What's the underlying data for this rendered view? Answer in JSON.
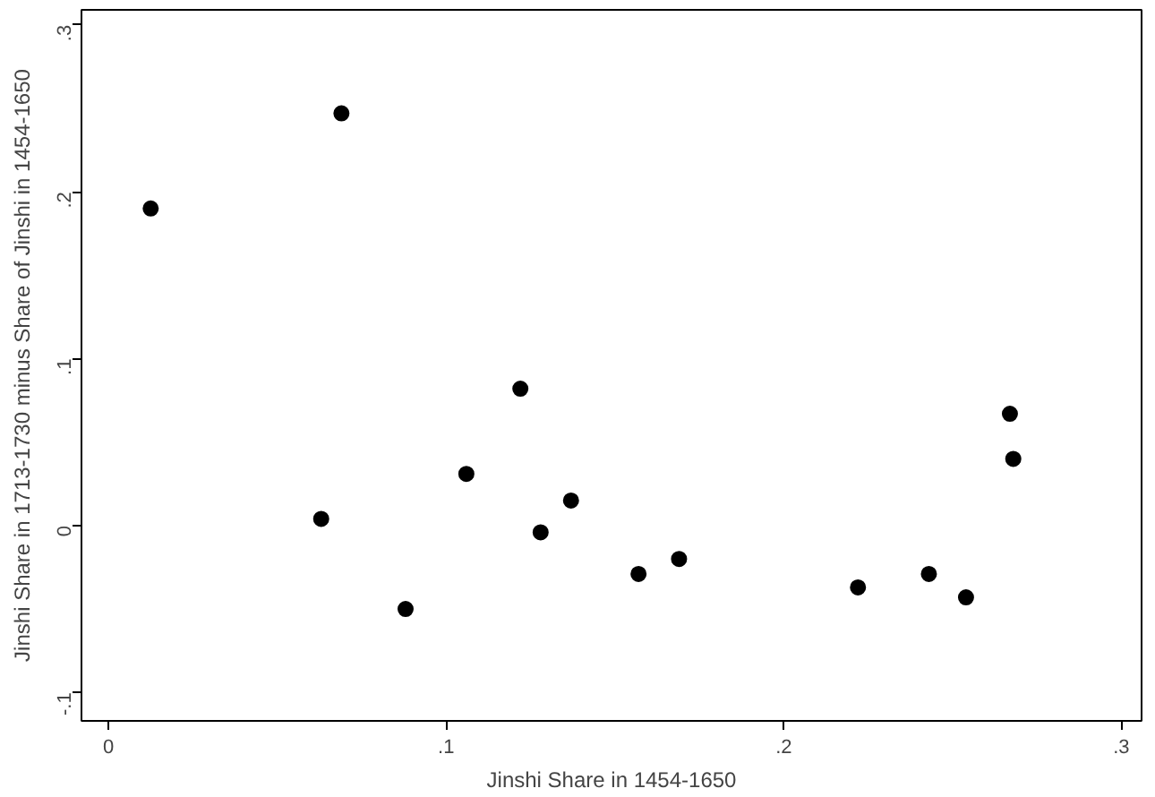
{
  "chart_data": {
    "type": "scatter",
    "xlabel": "Jinshi Share in 1454-1650",
    "ylabel": "Jinshi Share in 1713-1730 minus Share of Jinshi in 1454-1650",
    "x": [
      0.0125,
      0.069,
      0.063,
      0.088,
      0.106,
      0.122,
      0.128,
      0.137,
      0.157,
      0.169,
      0.222,
      0.243,
      0.254,
      0.267,
      0.268
    ],
    "series": [
      {
        "color": "#000000",
        "values": [
          0.19,
          0.247,
          0.004,
          -0.05,
          0.031,
          0.082,
          -0.004,
          0.015,
          -0.029,
          -0.02,
          -0.037,
          -0.029,
          -0.043,
          0.067,
          0.04
        ]
      }
    ],
    "xlim": [
      -0.008,
      0.306
    ],
    "ylim": [
      -0.117,
      0.309
    ],
    "xticks": [
      0,
      {
        "value": 0.1,
        "label": ".1"
      },
      {
        "value": 0.2,
        "label": ".2"
      },
      {
        "value": 0.3,
        "label": ".3"
      }
    ],
    "yticks": [
      {
        "value": -0.1,
        "label": "-.1"
      },
      0,
      {
        "value": 0.1,
        "label": ".1"
      },
      {
        "value": 0.2,
        "label": ".2"
      },
      {
        "value": 0.3,
        "label": ".3"
      }
    ],
    "grid": false,
    "marker": "circle"
  }
}
